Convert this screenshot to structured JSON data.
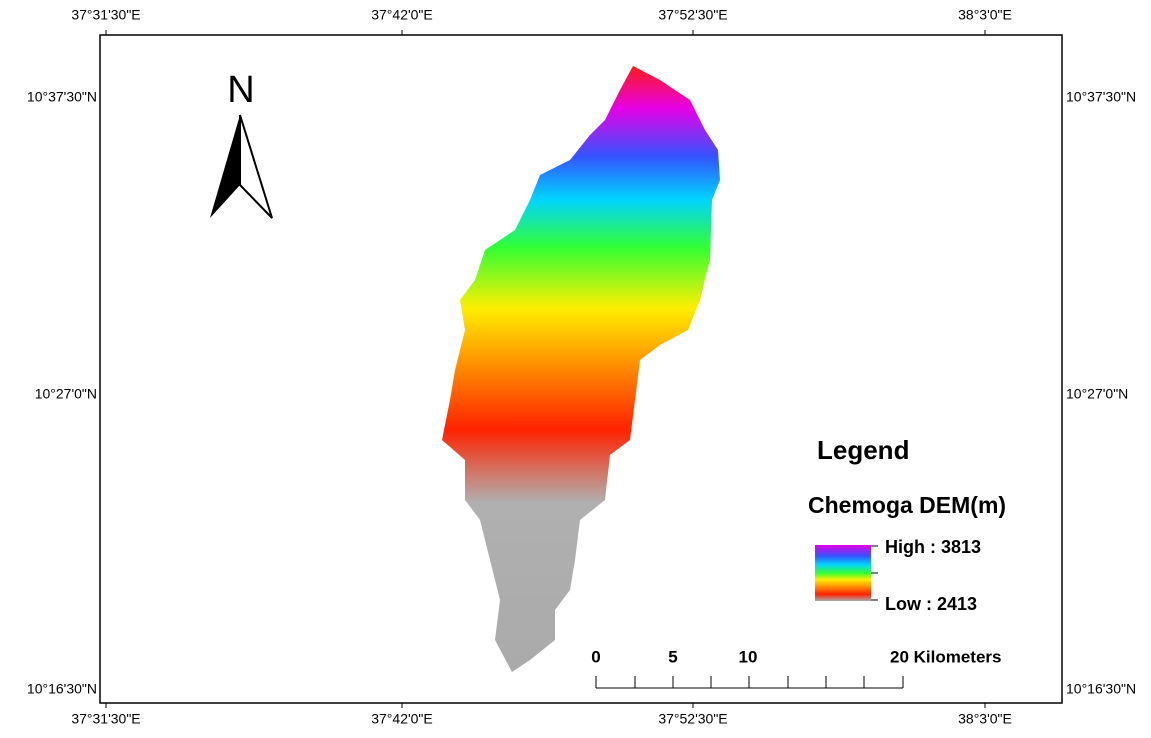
{
  "map": {
    "top_labels": [
      "37°31'30\"E",
      "37°42'0\"E",
      "37°52'30\"E",
      "38°3'0\"E"
    ],
    "bottom_labels": [
      "37°31'30\"E",
      "37°42'0\"E",
      "37°52'30\"E",
      "38°3'0\"E"
    ],
    "left_labels": [
      "10°37'30\"N",
      "10°27'0\"N",
      "10°16'30\"N"
    ],
    "right_labels": [
      "10°37'30\"N",
      "10°27'0\"N",
      "10°16'30\"N"
    ],
    "north": "N",
    "legend": {
      "title": "Legend",
      "layer": "Chemoga DEM(m)",
      "high": "High : 3813",
      "low": "Low : 2413"
    },
    "scale_bar": [
      "0",
      "5",
      "10",
      "20 Kilometers"
    ]
  }
}
